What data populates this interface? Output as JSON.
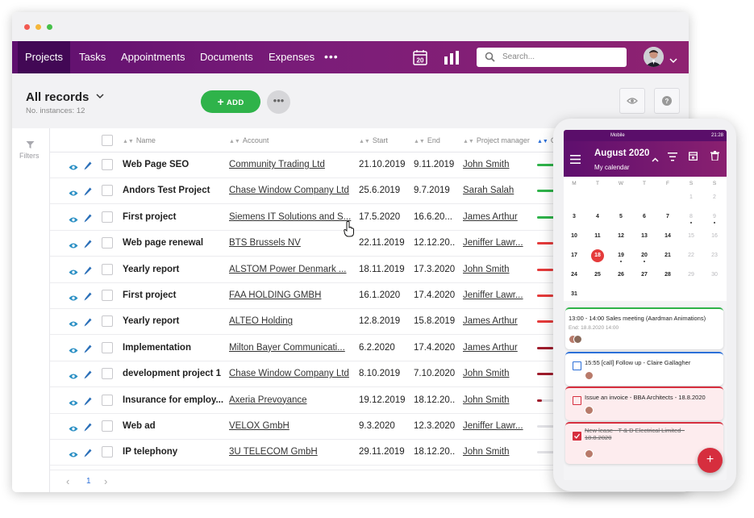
{
  "nav": {
    "tabs": [
      "Projects",
      "Tasks",
      "Appointments",
      "Documents",
      "Expenses"
    ],
    "more": "•••",
    "calendar_day": "20",
    "search_placeholder": "Search..."
  },
  "records": {
    "title": "All records",
    "count": "No. instances: 12",
    "add_label": "ADD",
    "more_label": "•••"
  },
  "sidebar": {
    "filters_label": "Filters"
  },
  "table": {
    "columns": [
      "Name",
      "Account",
      "Start",
      "End",
      "Project manager",
      "Co"
    ],
    "rows": [
      {
        "name": "Web Page SEO",
        "account": "Community Trading Ltd",
        "start": "21.10.2019",
        "end": "9.11.2019",
        "pm": "John Smith",
        "progress": 0.85,
        "color": "#2fb34a"
      },
      {
        "name": "Andors Test Project",
        "account": "Chase Window Company Ltd",
        "start": "25.6.2019",
        "end": "9.7.2019",
        "pm": "Sarah Salah",
        "progress": 0.85,
        "color": "#2fb34a"
      },
      {
        "name": "First project",
        "account": "Siemens IT Solutions and S...",
        "start": "17.5.2020",
        "end": "16.6.20...",
        "pm": "James Arthur",
        "progress": 0.85,
        "color": "#2fb34a"
      },
      {
        "name": "Web page renewal",
        "account": "BTS Brussels NV",
        "start": "22.11.2019",
        "end": "12.12.20...",
        "pm": "Jeniffer Lawr...",
        "progress": 0.65,
        "color": "#e53b3b"
      },
      {
        "name": "Yearly report",
        "account": "ALSTOM Power Denmark ...",
        "start": "18.11.2019",
        "end": "17.3.2020",
        "pm": "John Smith",
        "progress": 0.65,
        "color": "#e53b3b"
      },
      {
        "name": "First project",
        "account": "FAA HOLDING GMBH",
        "start": "16.1.2020",
        "end": "17.4.2020",
        "pm": "Jeniffer Lawr...",
        "progress": 0.65,
        "color": "#e53b3b"
      },
      {
        "name": "Yearly report",
        "account": "ALTEO Holding",
        "start": "12.8.2019",
        "end": "15.8.2019",
        "pm": "James Arthur",
        "progress": 0.65,
        "color": "#e53b3b"
      },
      {
        "name": "Implementation",
        "account": "Milton Bayer Communicati...",
        "start": "6.2.2020",
        "end": "17.4.2020",
        "pm": "James Arthur",
        "progress": 0.65,
        "color": "#a01c2c"
      },
      {
        "name": "development project 1",
        "account": "Chase Window Company Ltd",
        "start": "8.10.2019",
        "end": "7.10.2020",
        "pm": "John Smith",
        "progress": 0.65,
        "color": "#a01c2c"
      },
      {
        "name": "Insurance for employ...",
        "account": "Axeria Prevoyance",
        "start": "19.12.2019",
        "end": "18.12.20...",
        "pm": "John Smith",
        "progress": 0.2,
        "color": "#a01c2c"
      },
      {
        "name": "Web ad",
        "account": "VELOX GmbH",
        "start": "9.3.2020",
        "end": "12.3.2020",
        "pm": "Jeniffer Lawr...",
        "progress": 0.0,
        "color": "#a01c2c"
      },
      {
        "name": "IP telephony",
        "account": "3U TELECOM GmbH",
        "start": "29.11.2019",
        "end": "18.12.20...",
        "pm": "John Smith",
        "progress": 0.0,
        "color": "#a01c2c"
      }
    ]
  },
  "pager": {
    "prev": "‹",
    "page": "1",
    "next": "›"
  },
  "phone": {
    "status_left": "Mobile",
    "status_time": "21:28",
    "month": "August 2020",
    "subtitle": "My calendar",
    "weekdays": [
      "M",
      "T",
      "W",
      "T",
      "F",
      "S",
      "S"
    ],
    "days": [
      "",
      "",
      "",
      "",
      "",
      "1",
      "2",
      "3",
      "4",
      "5",
      "6",
      "7",
      "8",
      "9",
      "10",
      "11",
      "12",
      "13",
      "14",
      "15",
      "16",
      "17",
      "18",
      "19",
      "20",
      "21",
      "22",
      "23",
      "24",
      "25",
      "26",
      "27",
      "28",
      "29",
      "30",
      "31",
      "",
      "",
      "",
      "",
      "",
      ""
    ],
    "grey_days": [
      "1",
      "2",
      "8",
      "9",
      "15",
      "16",
      "22",
      "23",
      "29",
      "30"
    ],
    "dot_days": [
      "8",
      "9",
      "19",
      "20"
    ],
    "today": "18",
    "events": [
      {
        "title": "13:00 - 14:00  Sales meeting (Aardman Animations)",
        "sub": "End: 18.8.2020 14:00",
        "color": "#2fb34a",
        "bg": "#ffffff",
        "box": ""
      },
      {
        "title": "15:55  [call] Follow up - Claire Gallagher",
        "sub": "",
        "color": "#2b6fd8",
        "bg": "#ffffff",
        "box": "#2b6fd8"
      },
      {
        "title": "Issue an invoice - BBA Architects - 18.8.2020",
        "sub": "",
        "color": "#d62e3e",
        "bg": "#fdecee",
        "box": "#d62e3e"
      },
      {
        "title": "New lease - T & D Electrical Limited - 18.8.2020",
        "sub": "",
        "color": "#d62e3e",
        "bg": "#fdecee",
        "box": "#d62e3e"
      }
    ],
    "fab": "+"
  }
}
